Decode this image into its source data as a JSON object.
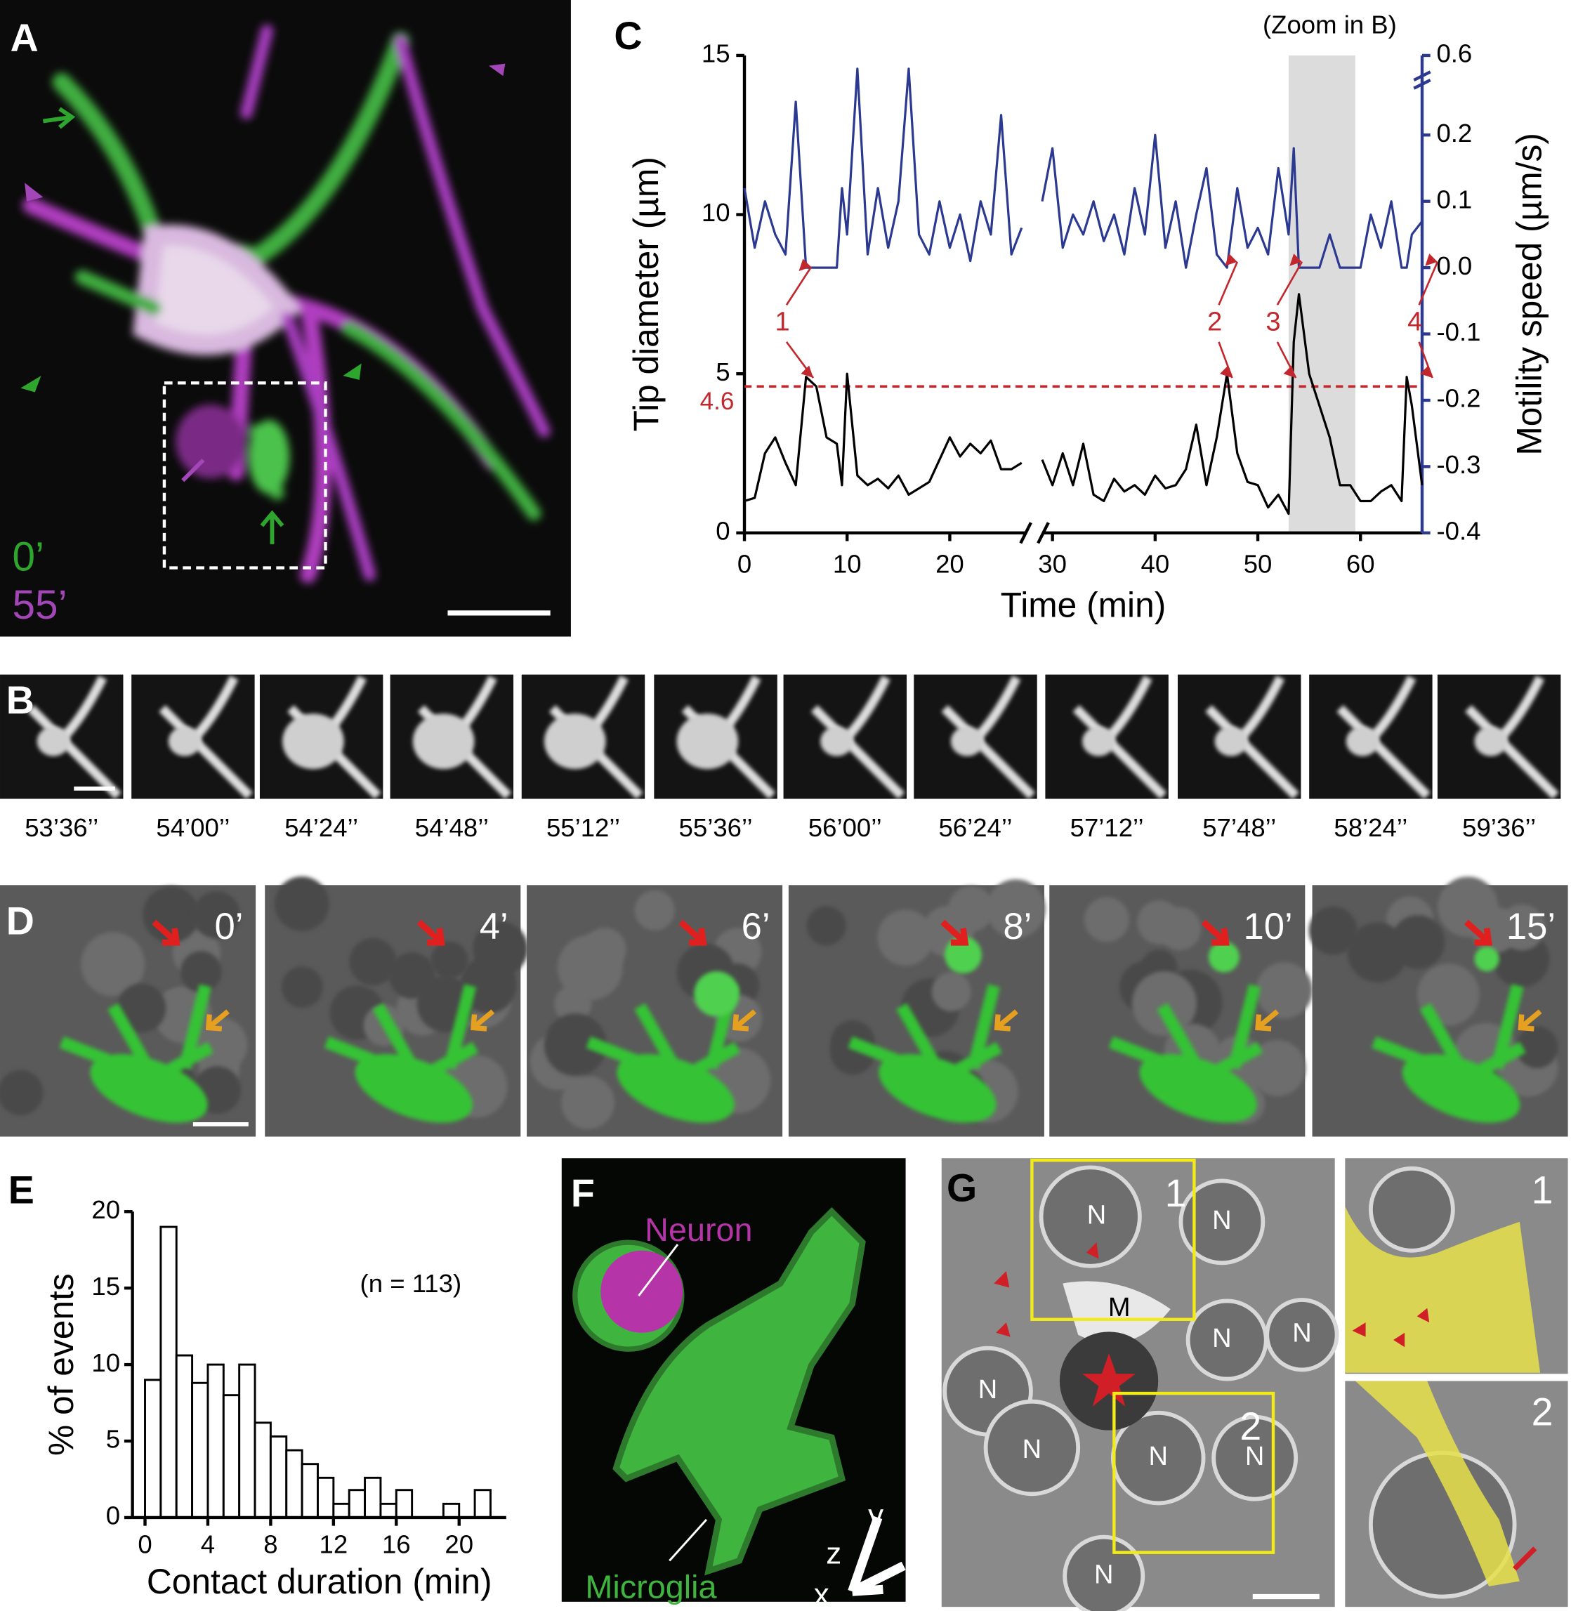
{
  "panel_a": {
    "label": "A",
    "time_start": "0’",
    "time_end": "55’"
  },
  "panel_b": {
    "label": "B",
    "times": [
      "53’36’’",
      "54’00’’",
      "54’24’’",
      "54’48’’",
      "55’12’’",
      "55’36’’",
      "56’00’’",
      "56’24’’",
      "57’12’’",
      "57’48’’",
      "58’24’’",
      "59’36’’"
    ]
  },
  "panel_d": {
    "label": "D",
    "times": [
      "0’",
      "4’",
      "6’",
      "8’",
      "10’",
      "15’"
    ]
  },
  "panel_f": {
    "label": "F",
    "neuron": "Neuron",
    "microglia": "Microglia",
    "axes": [
      "z",
      "y",
      "x"
    ]
  },
  "panel_g": {
    "label": "G",
    "boxes": [
      "1",
      "2"
    ],
    "m_label": "M",
    "n_labels": [
      "N",
      "N",
      "N",
      "N",
      "N",
      "N",
      "N",
      "N",
      "N"
    ],
    "insets": [
      "1",
      "2"
    ]
  },
  "chart_data": [
    {
      "type": "line",
      "panel_label": "C",
      "y_label": "Tip diameter (µm)",
      "y2_label": "Motility speed (µm/s)",
      "x_label": "Time (min)",
      "zoom_label": "(Zoom in B)",
      "zoom_span": [
        53,
        59.5
      ],
      "threshold": 4.6,
      "events": [
        "1",
        "2",
        "3",
        "4"
      ],
      "x": [
        0,
        1,
        2,
        3,
        4,
        5,
        6,
        7,
        8,
        9,
        9.5,
        10,
        11,
        12,
        13,
        14,
        15,
        16,
        17,
        18,
        19,
        20,
        21,
        22,
        23,
        24,
        25,
        26,
        27,
        null,
        29,
        30,
        31,
        32,
        33,
        34,
        35,
        36,
        37,
        38,
        39,
        40,
        41,
        42,
        43,
        44,
        45,
        46,
        47,
        48,
        49,
        50,
        51,
        52,
        53,
        53.5,
        54,
        55,
        56,
        57,
        58,
        59,
        60,
        61,
        62,
        63,
        64,
        64.5,
        65,
        66
      ],
      "series": [
        {
          "name": "Tip diameter",
          "color": "#000000",
          "axis": "y",
          "values": [
            1,
            1.1,
            2.5,
            3,
            2.2,
            1.5,
            4.9,
            4.6,
            3,
            2.8,
            1.5,
            5,
            1.8,
            1.5,
            1.7,
            1.4,
            1.8,
            1.2,
            1.4,
            1.6,
            2.3,
            3,
            2.4,
            2.8,
            2.5,
            2.9,
            2,
            2,
            2.2,
            null,
            2.3,
            1.5,
            2.5,
            1.5,
            2.8,
            1.2,
            1,
            1.7,
            1.3,
            1.5,
            1.2,
            1.8,
            1.4,
            1.5,
            2,
            3.4,
            1.5,
            3,
            5,
            2.5,
            1.6,
            1.5,
            0.8,
            1.2,
            0.6,
            6,
            7.5,
            5,
            4,
            3,
            1.5,
            1.5,
            1,
            1,
            1.3,
            1.5,
            1,
            4.9,
            4,
            1.5
          ]
        },
        {
          "name": "Motility speed",
          "color": "#2b3990",
          "axis": "y2",
          "values": [
            0.12,
            0.03,
            0.1,
            0.05,
            0.02,
            0.25,
            0,
            0,
            0,
            0,
            0.12,
            0.05,
            0.3,
            0.02,
            0.12,
            0.03,
            0.1,
            0.3,
            0.05,
            0.02,
            0.1,
            0.03,
            0.08,
            0.01,
            0.1,
            0.05,
            0.23,
            0.02,
            0.06,
            null,
            0.1,
            0.18,
            0.03,
            0.08,
            0.05,
            0.1,
            0.04,
            0.08,
            0.02,
            0.12,
            0.05,
            0.2,
            0.03,
            0.1,
            0,
            0.08,
            0.15,
            0.02,
            0,
            0.12,
            0.03,
            0.06,
            0.02,
            0.15,
            0.05,
            0.18,
            0,
            0,
            0,
            0.05,
            0,
            0,
            0,
            0.08,
            0.03,
            0.1,
            0,
            0,
            0.05,
            0.07
          ]
        }
      ],
      "xlim": [
        0,
        66
      ],
      "xticks": [
        0,
        10,
        20,
        30,
        40,
        50,
        60
      ],
      "x_break": [
        27.5,
        29
      ],
      "ylim": [
        0,
        15
      ],
      "yticks": [
        0,
        5,
        10,
        15
      ],
      "y2lim": [
        -0.4,
        0.32
      ],
      "y2ticks": [
        -0.4,
        -0.3,
        -0.2,
        -0.1,
        {
          "value": 0,
          "label": "0.0"
        },
        0.1,
        0.2
      ],
      "y2_break_tick": 0.6,
      "threshold_color": "#c1272d",
      "zoom_color": "#dcdcdc"
    },
    {
      "type": "histogram",
      "panel_label": "E",
      "y_label": "% of events",
      "x_label": "Contact duration (min)",
      "note": "(n = 113)",
      "bins": [
        0,
        1,
        2,
        3,
        4,
        5,
        6,
        7,
        8,
        9,
        10,
        11,
        12,
        13,
        14,
        15,
        16,
        17,
        18,
        19,
        20,
        21,
        22
      ],
      "values": [
        9,
        19,
        10.6,
        8.8,
        10,
        8,
        10,
        6.2,
        5.3,
        4.4,
        3.5,
        2.6,
        0.9,
        1.8,
        2.6,
        0.9,
        1.8,
        0,
        0,
        0.9,
        0,
        1.8
      ],
      "color": "#ffffff",
      "xlim": [
        -0.8,
        23
      ],
      "xticks": [
        0,
        4,
        8,
        12,
        16,
        20
      ],
      "ylim": [
        0,
        20
      ],
      "yticks": [
        0,
        5,
        10,
        15,
        20
      ]
    }
  ]
}
